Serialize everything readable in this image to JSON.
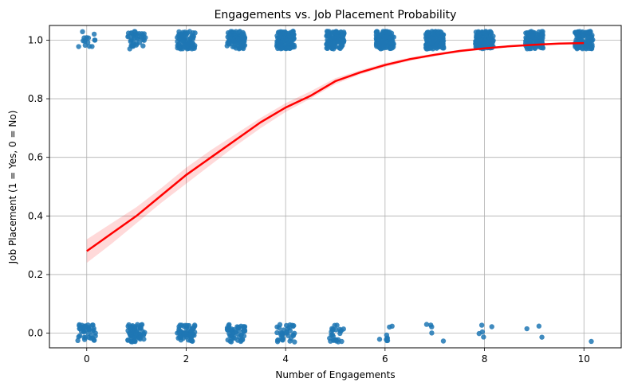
{
  "chart_data": {
    "type": "scatter",
    "title": "Engagements vs. Job Placement Probability",
    "xlabel": "Number of Engagements",
    "ylabel": "Job Placement (1 = Yes, 0 = No)",
    "xlim": [
      -0.75,
      10.75
    ],
    "ylim": [
      -0.05,
      1.05
    ],
    "xticks": [
      "0",
      "2",
      "4",
      "6",
      "8",
      "10"
    ],
    "yticks": [
      "0.0",
      "0.2",
      "0.4",
      "0.6",
      "0.8",
      "1.0"
    ],
    "grid": true,
    "legend": "none",
    "scatter": {
      "color": "#1f77b4",
      "points_per_x": [
        {
          "x": 0,
          "yes": 14,
          "no": 40
        },
        {
          "x": 1,
          "yes": 40,
          "no": 65
        },
        {
          "x": 2,
          "yes": 80,
          "no": 60
        },
        {
          "x": 3,
          "yes": 95,
          "no": 50
        },
        {
          "x": 4,
          "yes": 110,
          "no": 35
        },
        {
          "x": 5,
          "yes": 110,
          "no": 25
        },
        {
          "x": 6,
          "yes": 120,
          "no": 9
        },
        {
          "x": 7,
          "yes": 135,
          "no": 5
        },
        {
          "x": 8,
          "yes": 110,
          "no": 5
        },
        {
          "x": 9,
          "yes": 110,
          "no": 3
        },
        {
          "x": 10,
          "yes": 105,
          "no": 1
        }
      ]
    },
    "fit": {
      "type": "logistic",
      "color": "#ff0000",
      "x": [
        0,
        0.5,
        1,
        1.5,
        2,
        2.5,
        3,
        3.5,
        4,
        4.5,
        5,
        5.5,
        6,
        6.5,
        7,
        7.5,
        8,
        8.5,
        9,
        9.5,
        10
      ],
      "y": [
        0.28,
        0.34,
        0.4,
        0.47,
        0.54,
        0.6,
        0.66,
        0.72,
        0.77,
        0.81,
        0.86,
        0.89,
        0.915,
        0.935,
        0.95,
        0.963,
        0.972,
        0.979,
        0.984,
        0.988,
        0.99
      ],
      "ci_lower": [
        0.24,
        0.305,
        0.375,
        0.445,
        0.51,
        0.575,
        0.64,
        0.7,
        0.755,
        0.8,
        0.85,
        0.883,
        0.908,
        0.929,
        0.945,
        0.958,
        0.968,
        0.976,
        0.982,
        0.986,
        0.988
      ],
      "ci_upper": [
        0.32,
        0.375,
        0.43,
        0.495,
        0.565,
        0.625,
        0.68,
        0.735,
        0.785,
        0.825,
        0.87,
        0.897,
        0.922,
        0.941,
        0.955,
        0.967,
        0.976,
        0.982,
        0.987,
        0.99,
        0.992
      ]
    }
  }
}
